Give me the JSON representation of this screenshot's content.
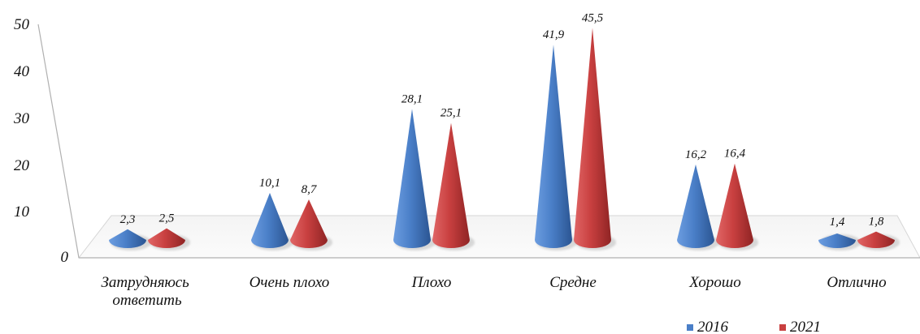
{
  "chart_data": {
    "type": "bar",
    "style": "3d-cone",
    "categories": [
      [
        "Затрудняюсь",
        "ответить"
      ],
      [
        "Очень плохо"
      ],
      [
        "Плохо"
      ],
      [
        "Средне"
      ],
      [
        "Хорошо"
      ],
      [
        "Отлично"
      ]
    ],
    "series": [
      {
        "name": "2016",
        "color": "#4a7fc8",
        "values": [
          2.3,
          10.1,
          28.1,
          41.9,
          16.2,
          1.4
        ],
        "labels": [
          "2,3",
          "10,1",
          "28,1",
          "41,9",
          "16,2",
          "1,4"
        ]
      },
      {
        "name": "2021",
        "color": "#c94040",
        "values": [
          2.5,
          8.7,
          25.1,
          45.5,
          16.4,
          1.8
        ],
        "labels": [
          "2,5",
          "8,7",
          "25,1",
          "45,5",
          "16,4",
          "1,8"
        ]
      }
    ],
    "yticks": [
      "0",
      "10",
      "20",
      "30",
      "40",
      "50"
    ],
    "ylim": [
      0,
      50
    ],
    "legend_position": "bottom-right",
    "grid": false
  }
}
